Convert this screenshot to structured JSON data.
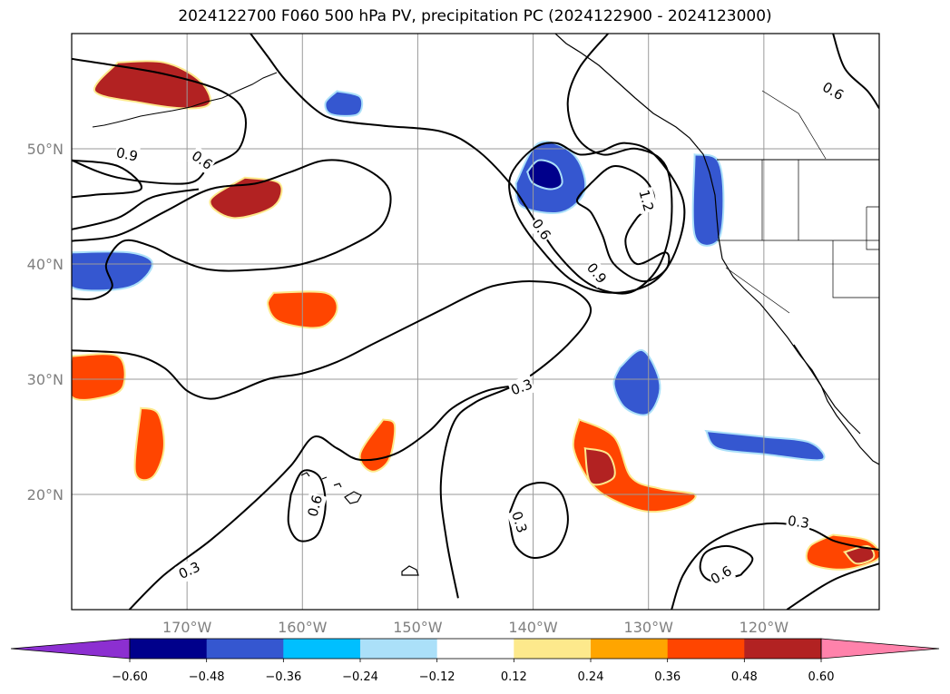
{
  "title": "2024122700 F060 500 hPa PV, precipitation PC (2024122900 - 2024123000)",
  "lat_labels": [
    {
      "lat": 50,
      "text": "50°N"
    },
    {
      "lat": 40,
      "text": "40°N"
    },
    {
      "lat": 30,
      "text": "30°N"
    },
    {
      "lat": 20,
      "text": "20°N"
    }
  ],
  "lon_labels": [
    {
      "lon": -170,
      "text": "170°W"
    },
    {
      "lon": -160,
      "text": "160°W"
    },
    {
      "lon": -150,
      "text": "150°W"
    },
    {
      "lon": -140,
      "text": "140°W"
    },
    {
      "lon": -130,
      "text": "130°W"
    },
    {
      "lon": -120,
      "text": "120°W"
    }
  ],
  "extent": {
    "lon_min": -180,
    "lon_max": -110,
    "lat_min": 10,
    "lat_max": 60
  },
  "colorbar": {
    "colors": [
      "#8c2fd1",
      "#00008b",
      "#3557d0",
      "#00bfff",
      "#abe0f9",
      "#ffffff",
      "#fde98c",
      "#ffa500",
      "#ff4500",
      "#b22222",
      "#ff82ab"
    ],
    "ticks": [
      "−0.60",
      "−0.48",
      "−0.36",
      "−0.24",
      "−0.12",
      "0.12",
      "0.24",
      "0.36",
      "0.48",
      "0.60"
    ]
  },
  "contour_labels": [
    {
      "text": "0.9",
      "lon": -175.2,
      "lat": 49.5,
      "rot": 12
    },
    {
      "text": "0.6",
      "lon": -168.7,
      "lat": 49.0,
      "rot": 35
    },
    {
      "text": "0.6",
      "lon": -139.3,
      "lat": 43.0,
      "rot": 55
    },
    {
      "text": "0.9",
      "lon": -134.5,
      "lat": 39.2,
      "rot": 50
    },
    {
      "text": "1.2",
      "lon": -130.2,
      "lat": 45.5,
      "rot": 75
    },
    {
      "text": "0.6",
      "lon": -114.0,
      "lat": 55.0,
      "rot": 30
    },
    {
      "text": "0.3",
      "lon": -141.0,
      "lat": 29.3,
      "rot": -20
    },
    {
      "text": "0.3",
      "lon": -141.2,
      "lat": 17.6,
      "rot": 72
    },
    {
      "text": "0.6",
      "lon": -158.9,
      "lat": 19.0,
      "rot": -75
    },
    {
      "text": "0.3",
      "lon": -169.8,
      "lat": 13.4,
      "rot": -25
    },
    {
      "text": "0.3",
      "lon": -117.0,
      "lat": 17.6,
      "rot": 8
    },
    {
      "text": "0.6",
      "lon": -123.7,
      "lat": 13.0,
      "rot": -30
    }
  ],
  "pv_contours": [
    {
      "level": "0.3",
      "points": [
        [
          -180,
          32.5
        ],
        [
          -175,
          32.2
        ],
        [
          -172,
          31.0
        ],
        [
          -170,
          29.0
        ],
        [
          -168,
          28.3
        ],
        [
          -166,
          28.8
        ],
        [
          -163,
          30.0
        ],
        [
          -160,
          30.5
        ],
        [
          -157,
          31.5
        ],
        [
          -154,
          33.0
        ],
        [
          -151,
          34.5
        ],
        [
          -148,
          36.0
        ],
        [
          -145,
          37.5
        ],
        [
          -143,
          38.2
        ],
        [
          -140,
          38.5
        ],
        [
          -137,
          38.0
        ],
        [
          -135,
          36.0
        ],
        [
          -137,
          33.0
        ],
        [
          -141,
          29.8
        ],
        [
          -145,
          28.0
        ],
        [
          -147,
          26.0
        ],
        [
          -148,
          21.0
        ],
        [
          -147.5,
          16.0
        ],
        [
          -146.5,
          11.0
        ]
      ]
    },
    {
      "level": "0.3",
      "points": [
        [
          -175,
          10.0
        ],
        [
          -172,
          13.0
        ],
        [
          -168,
          16.0
        ],
        [
          -164,
          19.5
        ],
        [
          -161,
          22.5
        ],
        [
          -159,
          25.0
        ],
        [
          -157,
          24.0
        ],
        [
          -155,
          23.0
        ],
        [
          -152,
          23.5
        ],
        [
          -149,
          25.5
        ],
        [
          -147,
          27.5
        ],
        [
          -144,
          29.0
        ],
        [
          -141,
          29.5
        ]
      ]
    },
    {
      "level": "0.3",
      "points": [
        [
          -142,
          18.5
        ],
        [
          -141,
          20.5
        ],
        [
          -139,
          21.0
        ],
        [
          -137.5,
          20.0
        ],
        [
          -137,
          17.5
        ],
        [
          -138,
          15.2
        ],
        [
          -140,
          14.5
        ],
        [
          -141.5,
          15.5
        ],
        [
          -142,
          17.5
        ],
        [
          -142,
          18.5
        ]
      ]
    },
    {
      "level": "0.3",
      "points": [
        [
          -128,
          10.0
        ],
        [
          -127,
          13.0
        ],
        [
          -125,
          15.5
        ],
        [
          -122,
          17.0
        ],
        [
          -119,
          17.5
        ],
        [
          -116,
          17.0
        ],
        [
          -114,
          16.0
        ],
        [
          -112,
          15.5
        ],
        [
          -110,
          15.2
        ]
      ]
    },
    {
      "level": "0.6",
      "points": [
        [
          -133.5,
          60.0
        ],
        [
          -136,
          57.0
        ],
        [
          -137,
          54.0
        ],
        [
          -136.2,
          51.0
        ],
        [
          -134,
          49.5
        ],
        [
          -131,
          50.0
        ],
        [
          -128.5,
          48.5
        ],
        [
          -128,
          44.0
        ],
        [
          -129,
          40.0
        ],
        [
          -131,
          37.8
        ],
        [
          -133,
          37.5
        ],
        [
          -135.5,
          38.5
        ],
        [
          -138,
          41.0
        ],
        [
          -140,
          44.0
        ],
        [
          -142,
          47.0
        ],
        [
          -145,
          50.0
        ],
        [
          -148,
          51.5
        ],
        [
          -153,
          52.0
        ],
        [
          -157,
          52.5
        ],
        [
          -159,
          53.5
        ],
        [
          -161.5,
          56.0
        ],
        [
          -163,
          58.0
        ],
        [
          -164.5,
          60.0
        ]
      ]
    },
    {
      "level": "0.6",
      "points": [
        [
          -180,
          49.0
        ],
        [
          -176,
          47.5
        ],
        [
          -170,
          47.0
        ],
        [
          -168,
          48.5
        ],
        [
          -165.5,
          50.0
        ],
        [
          -165,
          53.0
        ],
        [
          -167,
          55.0
        ],
        [
          -172,
          56.5
        ],
        [
          -178,
          57.5
        ],
        [
          -180,
          57.8
        ]
      ]
    },
    {
      "level": "0.6",
      "points": [
        [
          -180,
          42.0
        ],
        [
          -176,
          42.5
        ],
        [
          -172,
          44.5
        ],
        [
          -168,
          46.5
        ],
        [
          -164,
          47.0
        ],
        [
          -161,
          48.0
        ],
        [
          -158,
          49.0
        ],
        [
          -155,
          48.5
        ],
        [
          -152.5,
          46.5
        ],
        [
          -153,
          43.5
        ],
        [
          -156,
          41.5
        ],
        [
          -160,
          40.0
        ],
        [
          -164,
          39.5
        ],
        [
          -168,
          39.5
        ],
        [
          -171,
          40.5
        ],
        [
          -173,
          41.5
        ],
        [
          -175.5,
          42.0
        ],
        [
          -177,
          40.0
        ],
        [
          -176.5,
          38.0
        ],
        [
          -178,
          37.0
        ],
        [
          -180,
          37.0
        ]
      ]
    },
    {
      "level": "0.6",
      "points": [
        [
          -161,
          20.0
        ],
        [
          -160,
          22.0
        ],
        [
          -158.5,
          21.5
        ],
        [
          -158,
          19.0
        ],
        [
          -158.7,
          16.5
        ],
        [
          -160.3,
          16.0
        ],
        [
          -161.2,
          17.5
        ],
        [
          -161,
          20.0
        ]
      ]
    },
    {
      "level": "0.6",
      "points": [
        [
          -122,
          13.0
        ],
        [
          -121,
          14.5
        ],
        [
          -123,
          15.5
        ],
        [
          -125,
          15.0
        ],
        [
          -125.5,
          13.5
        ],
        [
          -124.5,
          12.5
        ],
        [
          -122,
          13.0
        ]
      ]
    },
    {
      "level": "0.6",
      "points": [
        [
          -118,
          10.0
        ],
        [
          -115,
          12.0
        ],
        [
          -113,
          13.0
        ],
        [
          -110,
          14.0
        ]
      ]
    },
    {
      "level": "0.6",
      "points": [
        [
          -114,
          60.0
        ],
        [
          -113,
          57.0
        ],
        [
          -111,
          55.0
        ],
        [
          -110,
          53.5
        ]
      ]
    },
    {
      "level": "0.9",
      "points": [
        [
          -134,
          49.8
        ],
        [
          -132,
          50.5
        ],
        [
          -129.5,
          49.5
        ],
        [
          -127,
          45.5
        ],
        [
          -127.5,
          41.5
        ],
        [
          -129.5,
          38.5
        ],
        [
          -133,
          37.5
        ],
        [
          -136.5,
          38.5
        ],
        [
          -139.5,
          41.5
        ],
        [
          -141.5,
          44.5
        ],
        [
          -142,
          47.5
        ],
        [
          -140,
          50.0
        ],
        [
          -138,
          50.5
        ],
        [
          -136,
          49.5
        ],
        [
          -134,
          49.8
        ]
      ]
    },
    {
      "level": "0.9",
      "points": [
        [
          -180,
          43.0
        ],
        [
          -176,
          44.0
        ],
        [
          -173,
          45.8
        ],
        [
          -169,
          46.5
        ]
      ]
    },
    {
      "level": "0.9",
      "points": [
        [
          -180,
          49.0
        ],
        [
          -176,
          48.5
        ],
        [
          -174,
          46.5
        ],
        [
          -178,
          46.0
        ],
        [
          -180,
          45.8
        ]
      ]
    },
    {
      "level": "1.2",
      "points": [
        [
          -135,
          47.0
        ],
        [
          -133,
          48.5
        ],
        [
          -130.5,
          47.5
        ],
        [
          -129.5,
          45.5
        ],
        [
          -131,
          44.0
        ],
        [
          -132,
          42.0
        ],
        [
          -131,
          40.0
        ],
        [
          -128.5,
          41.0
        ],
        [
          -128.5,
          39.5
        ],
        [
          -130.5,
          38.5
        ],
        [
          -133,
          40.0
        ],
        [
          -134,
          42.5
        ],
        [
          -135,
          44.5
        ],
        [
          -136.2,
          45.5
        ],
        [
          -135,
          47.0
        ]
      ]
    }
  ],
  "precip_regions": [
    {
      "level": 0.48,
      "points": [
        [
          -176,
          57.5
        ],
        [
          -172,
          57.5
        ],
        [
          -169,
          56.0
        ],
        [
          -168,
          54.0
        ],
        [
          -170,
          53.5
        ],
        [
          -174,
          54.0
        ],
        [
          -178,
          55.0
        ],
        [
          -176,
          57.5
        ]
      ]
    },
    {
      "level": -0.36,
      "points": [
        [
          -157,
          55.0
        ],
        [
          -155,
          54.5
        ],
        [
          -155.2,
          53.0
        ],
        [
          -157.5,
          53.0
        ],
        [
          -158,
          54.0
        ],
        [
          -157,
          55.0
        ]
      ]
    },
    {
      "level": -0.36,
      "points": [
        [
          -141.5,
          47.0
        ],
        [
          -139.5,
          50.5
        ],
        [
          -136.5,
          49.5
        ],
        [
          -135.5,
          46.5
        ],
        [
          -137.5,
          44.5
        ],
        [
          -141,
          45.0
        ],
        [
          -141.5,
          47.0
        ]
      ]
    },
    {
      "level": -0.36,
      "points": [
        [
          -126,
          49.5
        ],
        [
          -124,
          49.0
        ],
        [
          -123.5,
          45.5
        ],
        [
          -124,
          42.0
        ],
        [
          -126,
          42.5
        ],
        [
          -126,
          49.5
        ]
      ]
    },
    {
      "level": -0.48,
      "points": [
        [
          -140.5,
          48.0
        ],
        [
          -139.5,
          49.0
        ],
        [
          -138,
          48.5
        ],
        [
          -137.5,
          47.0
        ],
        [
          -138.5,
          46.5
        ],
        [
          -140,
          47.0
        ],
        [
          -140.5,
          48.0
        ]
      ]
    },
    {
      "level": -0.36,
      "points": [
        [
          -180,
          41.0
        ],
        [
          -175,
          41.0
        ],
        [
          -173,
          40.0
        ],
        [
          -175,
          38.0
        ],
        [
          -180,
          38.0
        ],
        [
          -180,
          41.0
        ]
      ]
    },
    {
      "level": -0.36,
      "points": [
        [
          -132.5,
          31.0
        ],
        [
          -130.5,
          32.5
        ],
        [
          -129,
          29.5
        ],
        [
          -130,
          27.0
        ],
        [
          -132,
          27.5
        ],
        [
          -133,
          29.5
        ],
        [
          -132.5,
          31.0
        ]
      ]
    },
    {
      "level": -0.36,
      "points": [
        [
          -125,
          25.5
        ],
        [
          -120,
          25.0
        ],
        [
          -116,
          24.5
        ],
        [
          -115,
          23.0
        ],
        [
          -120,
          23.5
        ],
        [
          -124,
          24.0
        ],
        [
          -125,
          25.5
        ]
      ]
    },
    {
      "level": 0.48,
      "points": [
        [
          -165,
          47.5
        ],
        [
          -162,
          47.0
        ],
        [
          -162.5,
          45.0
        ],
        [
          -166,
          44.0
        ],
        [
          -168,
          45.5
        ],
        [
          -165,
          47.5
        ]
      ]
    },
    {
      "level": 0.36,
      "points": [
        [
          -162.5,
          37.5
        ],
        [
          -158,
          37.5
        ],
        [
          -157,
          36.0
        ],
        [
          -158.5,
          34.5
        ],
        [
          -162,
          35.0
        ],
        [
          -163,
          36.5
        ],
        [
          -162.5,
          37.5
        ]
      ]
    },
    {
      "level": 0.36,
      "points": [
        [
          -180,
          32.0
        ],
        [
          -176,
          32.0
        ],
        [
          -175.5,
          29.5
        ],
        [
          -177,
          28.5
        ],
        [
          -180,
          28.5
        ],
        [
          -180,
          32.0
        ]
      ]
    },
    {
      "level": 0.36,
      "points": [
        [
          -174,
          27.5
        ],
        [
          -172.5,
          27.0
        ],
        [
          -172,
          24.0
        ],
        [
          -173,
          21.5
        ],
        [
          -174.5,
          22.0
        ],
        [
          -174,
          27.5
        ]
      ]
    },
    {
      "level": 0.36,
      "points": [
        [
          -153,
          26.5
        ],
        [
          -152,
          26.0
        ],
        [
          -152.5,
          23.0
        ],
        [
          -154,
          22.0
        ],
        [
          -155,
          23.5
        ],
        [
          -153,
          26.5
        ]
      ]
    },
    {
      "level": 0.36,
      "points": [
        [
          -136,
          26.5
        ],
        [
          -133,
          25.0
        ],
        [
          -131.5,
          21.5
        ],
        [
          -129,
          20.5
        ],
        [
          -126,
          20.0
        ],
        [
          -127,
          19.0
        ],
        [
          -130,
          18.5
        ],
        [
          -133,
          19.5
        ],
        [
          -135,
          21.0
        ],
        [
          -136.5,
          24.0
        ],
        [
          -136,
          26.5
        ]
      ]
    },
    {
      "level": 0.48,
      "points": [
        [
          -135.5,
          24.0
        ],
        [
          -133.5,
          23.5
        ],
        [
          -133,
          21.5
        ],
        [
          -135,
          21.0
        ],
        [
          -135.5,
          24.0
        ]
      ]
    },
    {
      "level": 0.36,
      "points": [
        [
          -114,
          16.5
        ],
        [
          -111,
          16.0
        ],
        [
          -110,
          14.5
        ],
        [
          -113,
          13.5
        ],
        [
          -116,
          14.0
        ],
        [
          -116,
          15.5
        ],
        [
          -114,
          16.5
        ]
      ]
    },
    {
      "level": 0.48,
      "points": [
        [
          -113,
          15.0
        ],
        [
          -111,
          15.5
        ],
        [
          -110.5,
          14.5
        ],
        [
          -112,
          14.0
        ],
        [
          -113,
          15.0
        ]
      ]
    }
  ]
}
